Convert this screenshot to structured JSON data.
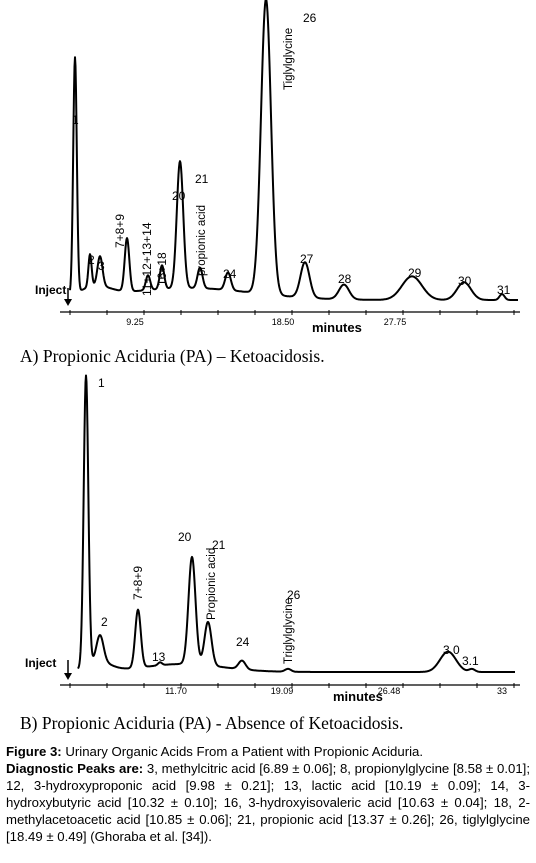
{
  "chart_data": [
    {
      "type": "line",
      "panel": "A",
      "xlabel": "minutes",
      "x_ticks": [
        "9.25",
        "18.50",
        "27.75"
      ],
      "inject_label": "Inject",
      "peaks": [
        {
          "label": "1",
          "height": 0.8
        },
        {
          "label": "2",
          "height": 0.11
        },
        {
          "label": "3",
          "height": 0.1
        },
        {
          "label": "7+8+9",
          "height": 0.18
        },
        {
          "label": "11+12+13+14",
          "height": 0.05
        },
        {
          "label": "16+18",
          "height": 0.08
        },
        {
          "label": "20",
          "height": 0.43
        },
        {
          "label": "21",
          "sublabel": "propionic acid",
          "height": 0.07
        },
        {
          "label": "24",
          "height": 0.06
        },
        {
          "label": "26",
          "sublabel": "Tiglylglycine",
          "height": 1.0
        },
        {
          "label": "27",
          "height": 0.12
        },
        {
          "label": "28",
          "height": 0.05
        },
        {
          "label": "29",
          "height": 0.08
        },
        {
          "label": "30",
          "height": 0.06
        },
        {
          "label": "31",
          "height": 0.02
        }
      ]
    },
    {
      "type": "line",
      "panel": "B",
      "xlabel": "minutes",
      "x_ticks": [
        "11.70",
        "19.09",
        "26.48",
        "33"
      ],
      "inject_label": "Inject",
      "peaks": [
        {
          "label": "1",
          "height": 1.0
        },
        {
          "label": "2",
          "height": 0.09
        },
        {
          "label": "7+8+9",
          "height": 0.2
        },
        {
          "label": "13",
          "height": 0.01
        },
        {
          "label": "20",
          "height": 0.37
        },
        {
          "label": "21",
          "sublabel": "Propionic acid",
          "height": 0.15
        },
        {
          "label": "24",
          "height": 0.03
        },
        {
          "label": "26",
          "sublabel": "Triglylglycine",
          "height": 0.01
        },
        {
          "label": "3.0",
          "height": 0.07
        },
        {
          "label": "3.1",
          "height": 0.01
        }
      ]
    }
  ],
  "captions": {
    "a": "A) Propionic Aciduria (PA) – Ketoacidosis.",
    "b": "B) Propionic Aciduria (PA) - Absence of Ketoacidosis."
  },
  "figure": {
    "label": "Figure 3:",
    "title": "Urinary Organic Acids From a Patient with Propionic Aciduria.",
    "peaks_label": "Diagnostic Peaks are:",
    "peaks_text": "3, methylcitric acid [6.89 ± 0.06]; 8, propionylglycine [8.58 ± 0.01]; 12, 3-hydroxyproponic acid [9.98 ± 0.21]; 13, lactic acid [10.19 ± 0.09]; 14, 3-hydroxybutyric acid [10.32 ± 0.10]; 16, 3-hydroxyisovaleric acid [10.63 ± 0.04]; 18, 2-methylacetoacetic acid [10.85 ± 0.06]; 21, propionic acid [13.37 ± 0.26]; 26, tiglylglycine [18.49 ± 0.49] (Ghoraba et al. [34])."
  }
}
